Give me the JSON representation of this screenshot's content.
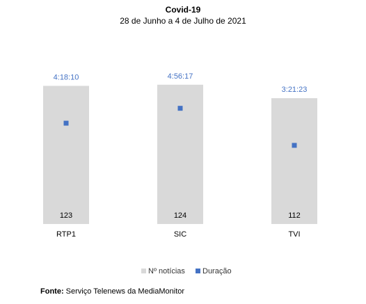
{
  "chart_data": {
    "type": "bar",
    "title": "Covid-19",
    "subtitle": "28 de Junho a 4 de Julho de 2021",
    "categories": [
      "RTP1",
      "SIC",
      "TVI"
    ],
    "series": [
      {
        "name": "Nº notícias",
        "type": "bar",
        "values": [
          123,
          124,
          112
        ],
        "color": "#d9d9d9"
      },
      {
        "name": "Duração",
        "type": "scatter",
        "values": [
          "4:18:10",
          "4:56:17",
          "3:21:23"
        ],
        "seconds": [
          15490,
          17777,
          12083
        ],
        "color": "#4472c4"
      }
    ],
    "bar_ylim": [
      0,
      135
    ],
    "duration_ylim_seconds": [
      0,
      23300
    ],
    "legend_position": "bottom"
  },
  "source": {
    "label": "Fonte:",
    "text": " Serviço Telenews da MediaMonitor"
  },
  "colors": {
    "duration_label": "#4472c4"
  }
}
